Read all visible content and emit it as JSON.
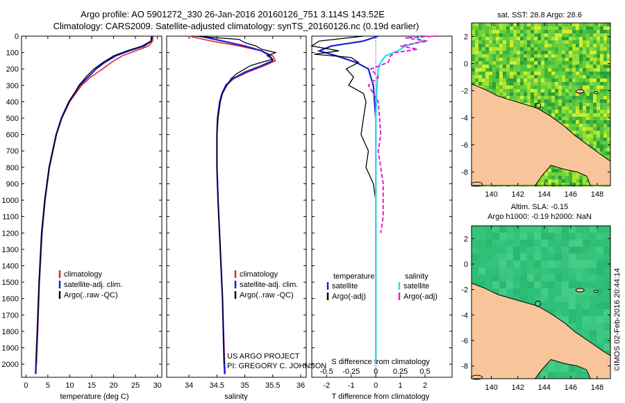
{
  "title_line1": "Argo profile: AO 5901272_330 26-Jan-2016 20160126_751 3.114S 143.52E",
  "title_line2": "Climatology: CARS2009. Satellite-adjusted climatology: synTS_20160126.nc (0.19d earlier)",
  "sst_title": "sat. SST: 28.8 Argo: 28.6",
  "sla_title1": "Altim. SLA: -0.15",
  "sla_title2": "Argo h1000: -0.19 h2000: NaN",
  "credit": "©IMOS 02-Feb-2016 20:44:14",
  "project_line1": "US ARGO PROJECT",
  "project_line2": "PI: GREGORY C. JOHNSON",
  "colors": {
    "climatology": "#e8231c",
    "satellite": "#1420d8",
    "argo": "#000000",
    "sal_satellite": "#22e0e8",
    "sal_argo": "#e020d8",
    "land": "#f8c59b"
  },
  "chart_data": [
    {
      "type": "line",
      "name": "temperature",
      "xlabel": "temperature (deg C)",
      "ylabel": "",
      "xlim": [
        -1,
        31
      ],
      "ylim": [
        0,
        2080
      ],
      "xticks": [
        0,
        5,
        10,
        15,
        20,
        25,
        30
      ],
      "yticks": [
        0,
        100,
        200,
        300,
        400,
        500,
        600,
        700,
        800,
        900,
        1000,
        1100,
        1200,
        1300,
        1400,
        1500,
        1600,
        1700,
        1800,
        1900,
        2000
      ],
      "legend": [
        "climatology",
        "satellite-adj. clim.",
        "Argo(..raw -QC)"
      ],
      "series": [
        {
          "name": "climatology",
          "depth": [
            0,
            30,
            60,
            90,
            120,
            160,
            200,
            250,
            300,
            400,
            500,
            600,
            800,
            1000,
            1200,
            1500,
            1800,
            2000,
            2060
          ],
          "values": [
            29.0,
            28.9,
            28.0,
            25.0,
            22.0,
            19.5,
            17.5,
            14.8,
            12.7,
            10.0,
            8.2,
            7.0,
            5.4,
            4.4,
            3.7,
            3.1,
            2.7,
            2.4,
            2.3
          ]
        },
        {
          "name": "satellite-adj. clim.",
          "depth": [
            0,
            30,
            60,
            90,
            120,
            160,
            200,
            250,
            300,
            400,
            500,
            600,
            800,
            1000,
            1200,
            1500,
            1800,
            2000,
            2060
          ],
          "values": [
            28.8,
            28.6,
            27.0,
            23.5,
            20.5,
            18.0,
            16.0,
            14.2,
            12.3,
            9.8,
            8.1,
            6.9,
            5.3,
            4.3,
            3.6,
            3.0,
            2.6,
            2.3,
            2.2
          ]
        },
        {
          "name": "Argo",
          "depth": [
            0,
            30,
            60,
            90,
            120,
            160,
            200,
            240,
            300,
            400,
            500,
            600,
            800,
            1000,
            1200,
            1500,
            1800,
            2000
          ],
          "values": [
            28.6,
            28.5,
            26.5,
            23.0,
            20.0,
            17.6,
            15.5,
            14.0,
            12.1,
            9.9,
            8.2,
            6.9,
            5.3,
            4.3,
            3.6,
            3.0,
            2.6,
            2.3
          ]
        }
      ]
    },
    {
      "type": "line",
      "name": "salinity",
      "xlabel": "salinity",
      "xlim": [
        33.6,
        36.1
      ],
      "ylim": [
        0,
        2080
      ],
      "xticks": [
        34,
        34.5,
        35,
        35.5,
        36
      ],
      "legend": [
        "climatology",
        "satellite-adj. clim.",
        "Argo(..raw -QC)"
      ],
      "series": [
        {
          "name": "climatology",
          "depth": [
            0,
            30,
            60,
            90,
            120,
            150,
            180,
            220,
            260,
            300,
            350,
            400,
            500,
            600,
            800,
            1000,
            1300,
            1600,
            2000,
            2060
          ],
          "values": [
            34.0,
            34.4,
            34.9,
            35.3,
            35.5,
            35.55,
            35.35,
            35.05,
            34.8,
            34.67,
            34.6,
            34.56,
            34.52,
            34.5,
            34.5,
            34.52,
            34.56,
            34.6,
            34.64,
            34.65
          ]
        },
        {
          "name": "satellite-adj. clim.",
          "depth": [
            0,
            30,
            60,
            90,
            120,
            150,
            180,
            220,
            260,
            300,
            350,
            400,
            500,
            600,
            800,
            1000,
            1300,
            1600,
            2000,
            2060
          ],
          "values": [
            34.2,
            34.6,
            35.0,
            35.3,
            35.45,
            35.5,
            35.3,
            35.0,
            34.78,
            34.66,
            34.59,
            34.55,
            34.51,
            34.5,
            34.5,
            34.52,
            34.56,
            34.6,
            34.63,
            34.64
          ]
        },
        {
          "name": "Argo",
          "depth": [
            0,
            20,
            40,
            60,
            80,
            100,
            120,
            140,
            160,
            180,
            200,
            230,
            260,
            300,
            350,
            400,
            500,
            600,
            800,
            1000,
            1300,
            1600,
            2000
          ],
          "values": [
            34.1,
            34.9,
            35.0,
            35.2,
            35.3,
            35.55,
            35.4,
            35.5,
            35.3,
            35.1,
            35.0,
            34.85,
            34.75,
            34.68,
            34.6,
            34.56,
            34.52,
            34.5,
            34.5,
            34.52,
            34.56,
            34.6,
            34.63
          ]
        }
      ]
    },
    {
      "type": "line",
      "name": "difference",
      "xlabel": "T difference from climatology",
      "x2label": "S difference from climatology",
      "xlim": [
        -2.6,
        3.1
      ],
      "xticks": [
        -2,
        -1,
        0,
        1,
        2
      ],
      "s_xticks": [
        -0.5,
        -0.25,
        0,
        0.25,
        0.5
      ],
      "legend_t_title": "temperature",
      "legend_s_title": "salinity",
      "legend": [
        "satellite",
        "Argo(-adj)",
        "satellite",
        "Argo(-adj)"
      ],
      "series": [
        {
          "name": "T satellite",
          "depth": [
            0,
            30,
            60,
            90,
            120,
            160,
            200,
            300,
            500,
            800,
            1000,
            1500,
            2000
          ],
          "values": [
            0.1,
            -0.5,
            -1.8,
            -2.3,
            -1.6,
            -0.8,
            -0.3,
            -0.1,
            0.0,
            0.0,
            0.0,
            0.0,
            0.0
          ]
        },
        {
          "name": "T Argo(-adj)",
          "depth": [
            0,
            30,
            60,
            90,
            110,
            130,
            160,
            200,
            250,
            300,
            350,
            400,
            500,
            600,
            700,
            800,
            900,
            1000,
            1200,
            1500,
            2000
          ],
          "values": [
            -0.5,
            -2.3,
            -2.6,
            -1.5,
            -2.5,
            -1.0,
            -0.7,
            -1.2,
            -0.9,
            -1.1,
            -0.5,
            -0.4,
            -0.5,
            -0.6,
            -0.3,
            -0.4,
            -0.1,
            0.0,
            0.0,
            0.0,
            0.0
          ]
        },
        {
          "name": "S satellite",
          "depth": [
            0,
            30,
            60,
            90,
            120,
            160,
            200,
            300,
            500,
            800,
            1000,
            1500,
            2000
          ],
          "values": [
            1.6,
            1.9,
            1.2,
            0.9,
            0.4,
            0.2,
            0.1,
            0.05,
            0.0,
            0.0,
            0.0,
            0.0,
            0.0
          ]
        },
        {
          "name": "S Argo(-adj)",
          "depth": [
            0,
            10,
            30,
            60,
            80,
            100,
            120,
            160,
            200,
            250,
            300,
            400,
            500,
            600,
            700,
            800,
            900,
            1000,
            1100,
            1200
          ],
          "values": [
            2.5,
            1.2,
            2.1,
            1.0,
            1.7,
            0.8,
            0.6,
            0.5,
            -0.2,
            0.1,
            -0.3,
            0.1,
            0.15,
            0.2,
            0.1,
            0.2,
            0.3,
            0.3,
            0.3,
            0.2
          ]
        }
      ]
    },
    {
      "type": "heatmap",
      "name": "sst_map",
      "title": "sat. SST: 28.8 Argo: 28.6",
      "xlim": [
        138.5,
        149
      ],
      "ylim": [
        -9,
        3
      ],
      "xticks": [
        140,
        142,
        144,
        146,
        148
      ],
      "yticks": [
        2,
        0,
        -2,
        -4,
        -6,
        -8
      ],
      "marker": {
        "lon": 143.52,
        "lat": -3.114
      }
    },
    {
      "type": "heatmap",
      "name": "sla_map",
      "title": "Altim. SLA: -0.15",
      "xlim": [
        138.5,
        149
      ],
      "ylim": [
        -9,
        3
      ],
      "xticks": [
        140,
        142,
        144,
        146,
        148
      ],
      "yticks": [
        2,
        0,
        -2,
        -4,
        -6,
        -8
      ],
      "marker": {
        "lon": 143.52,
        "lat": -3.114
      }
    }
  ]
}
